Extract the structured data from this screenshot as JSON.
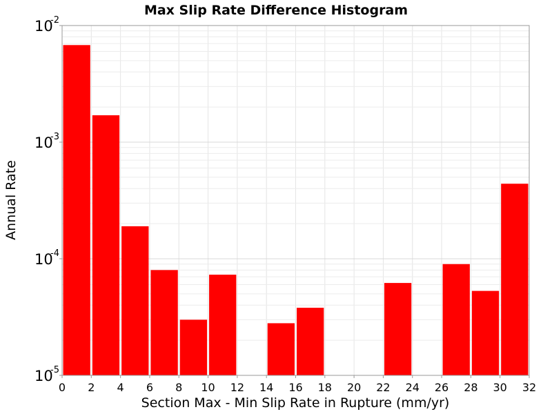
{
  "chart_data": {
    "type": "bar",
    "title": "Max Slip Rate Difference Histogram",
    "xlabel": "Section Max - Min Slip Rate in Rupture (mm/yr)",
    "ylabel": "Annual Rate",
    "y_scale": "log",
    "xlim": [
      0,
      32
    ],
    "ylim": [
      1e-05,
      0.01
    ],
    "bin_width": 2,
    "grid": true,
    "x_ticks": [
      "0",
      "2",
      "4",
      "6",
      "8",
      "10",
      "12",
      "14",
      "16",
      "18",
      "20",
      "22",
      "24",
      "26",
      "28",
      "30",
      "32"
    ],
    "y_ticks": [
      {
        "base": "10",
        "exp": "-5",
        "value": 1e-05
      },
      {
        "base": "10",
        "exp": "-4",
        "value": 0.0001
      },
      {
        "base": "10",
        "exp": "-3",
        "value": 0.001
      },
      {
        "base": "10",
        "exp": "-2",
        "value": 0.01
      }
    ],
    "bar_color": "#ff0000",
    "bins": [
      {
        "x_start": 0,
        "value": 0.0068
      },
      {
        "x_start": 2,
        "value": 0.0017
      },
      {
        "x_start": 4,
        "value": 0.00019
      },
      {
        "x_start": 6,
        "value": 8e-05
      },
      {
        "x_start": 8,
        "value": 3e-05
      },
      {
        "x_start": 10,
        "value": 7.3e-05
      },
      {
        "x_start": 12,
        "value": null
      },
      {
        "x_start": 14,
        "value": 2.8e-05
      },
      {
        "x_start": 16,
        "value": 3.8e-05
      },
      {
        "x_start": 18,
        "value": null
      },
      {
        "x_start": 20,
        "value": null
      },
      {
        "x_start": 22,
        "value": 6.2e-05
      },
      {
        "x_start": 24,
        "value": null
      },
      {
        "x_start": 26,
        "value": 9e-05
      },
      {
        "x_start": 28,
        "value": 5.3e-05
      },
      {
        "x_start": 30,
        "value": 0.00044
      }
    ]
  }
}
